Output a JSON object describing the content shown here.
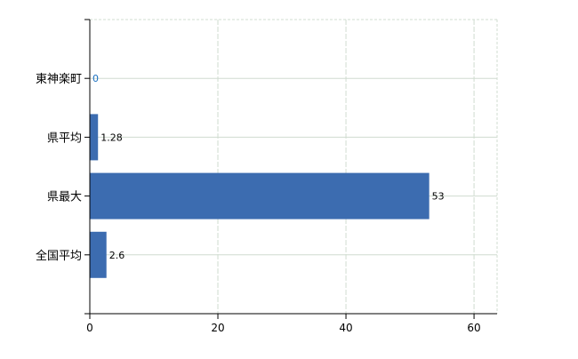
{
  "chart_data": {
    "type": "bar",
    "orientation": "horizontal",
    "categories": [
      "東神楽町",
      "県平均",
      "県最大",
      "全国平均"
    ],
    "values": [
      0,
      1.28,
      53,
      2.6
    ],
    "data_labels": [
      "0",
      "1.28",
      "53",
      "2.6"
    ],
    "title": "",
    "xlabel": "",
    "ylabel": "",
    "xlim": [
      0,
      63.6
    ],
    "xticks": [
      0,
      20,
      40,
      60
    ],
    "xtick_labels": [
      "0",
      "20",
      "40",
      "60"
    ],
    "grid": true,
    "legend": "none",
    "colors": {
      "bar": "#3c6cb0",
      "grid": "#d0dcd0",
      "axis": "#000000",
      "label_zero": "#1a6fc0"
    }
  }
}
